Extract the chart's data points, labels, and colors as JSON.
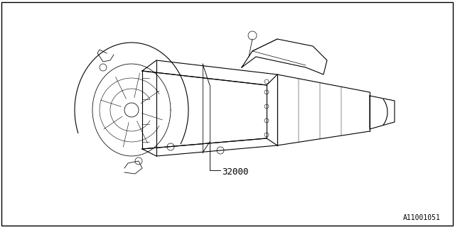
{
  "background_color": "#ffffff",
  "border_color": "#000000",
  "part_number": "32000",
  "diagram_id": "A11001051",
  "title": "",
  "line_color": "#000000",
  "line_width": 0.8,
  "fig_width": 6.4,
  "fig_height": 3.2,
  "dpi": 100
}
